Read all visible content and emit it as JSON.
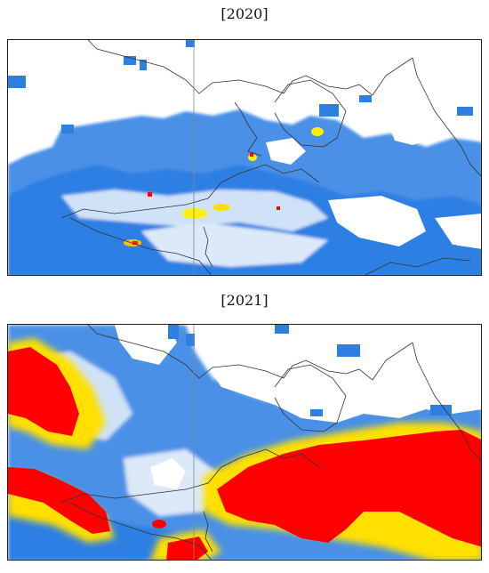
{
  "panels": [
    {
      "label": "[2020]"
    },
    {
      "label": "[2021]"
    }
  ],
  "colors": {
    "light_blue": "#cfe2f8",
    "mid_blue": "#7fb0ea",
    "deep_blue": "#2f7fe3",
    "pale_white": "#eef4fb",
    "yellow": "#fff000",
    "orange": "#ffb000",
    "red": "#ff0000",
    "coastline": "#333333",
    "meridian": "#888888"
  }
}
